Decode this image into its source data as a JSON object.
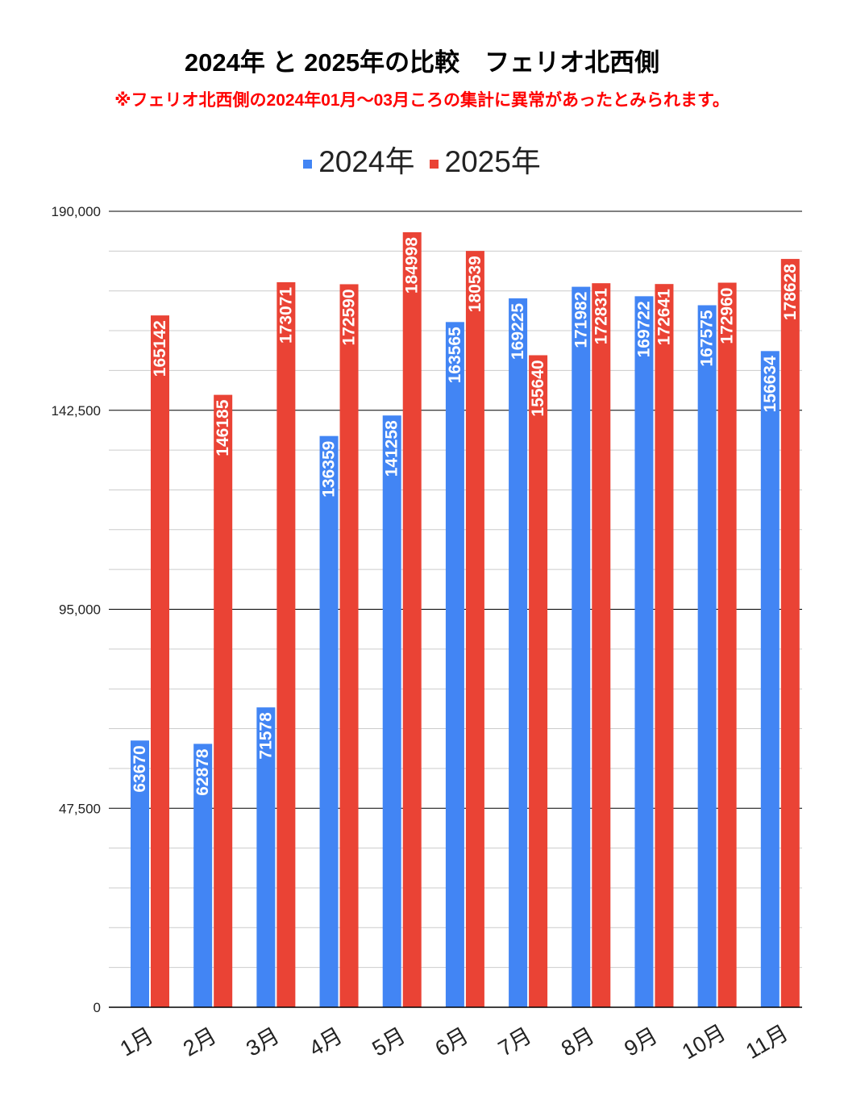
{
  "chart_data": {
    "type": "bar",
    "title": "2024年 と 2025年の比較　フェリオ北西側",
    "subtitle": "※フェリオ北西側の2024年01月～03月ころの集計に異常があったとみられます。",
    "categories": [
      "1月",
      "2月",
      "3月",
      "4月",
      "5月",
      "6月",
      "7月",
      "8月",
      "9月",
      "10月",
      "11月"
    ],
    "series": [
      {
        "name": "2024年",
        "color": "#4285f4",
        "values": [
          63670,
          62878,
          71578,
          136359,
          141258,
          163565,
          169225,
          171982,
          169722,
          167575,
          156634
        ]
      },
      {
        "name": "2025年",
        "color": "#ea4335",
        "values": [
          165142,
          146185,
          173071,
          172590,
          184998,
          180539,
          155640,
          172831,
          172641,
          172960,
          178628
        ]
      }
    ],
    "ylim": [
      0,
      190000
    ],
    "yticks": [
      "0",
      "47,500",
      "95,000",
      "142,500",
      "190,000"
    ],
    "ytick_values": [
      0,
      47500,
      95000,
      142500,
      190000
    ],
    "grid": true,
    "legend": "top"
  }
}
